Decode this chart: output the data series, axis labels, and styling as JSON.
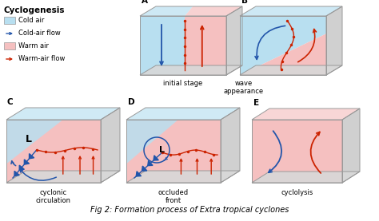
{
  "title": "Fig 2: Formation process of Extra tropical cyclones",
  "legend_title": "Cyclogenesis",
  "cold_color": "#b8dff0",
  "warm_color": "#f5c0c0",
  "blue": "#2255aa",
  "red": "#cc2200",
  "gray_side": "#c8c8c8",
  "gray_base": "#d8d8d8",
  "bg_color": "#ffffff",
  "panels": [
    {
      "label": "A",
      "subtitle": "initial stage",
      "col": 0,
      "row": 0
    },
    {
      "label": "B",
      "subtitle": "wave\nappearance",
      "col": 1,
      "row": 0
    },
    {
      "label": "C",
      "subtitle": "cyclonic\ncirculation",
      "col": 0,
      "row": 1
    },
    {
      "label": "D",
      "subtitle": "occluded\nfront",
      "col": 1,
      "row": 1
    },
    {
      "label": "E",
      "subtitle": "cyclolysis",
      "col": 2,
      "row": 1
    }
  ]
}
